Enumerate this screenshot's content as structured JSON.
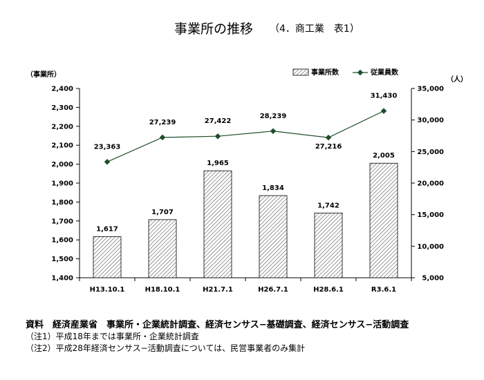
{
  "chart_data": {
    "type": "bar+line",
    "title": "事業所の推移",
    "subtitle": "（4．商工業　表1）",
    "categories": [
      "H13.10.1",
      "H18.10.1",
      "H21.7.1",
      "H26.7.1",
      "H28.6.1",
      "R3.6.1"
    ],
    "series": [
      {
        "name": "事業所数",
        "type": "bar",
        "axis": "left",
        "values": [
          1617,
          1707,
          1965,
          1834,
          1742,
          2005
        ],
        "labels": [
          "1,617",
          "1,707",
          "1,965",
          "1,834",
          "1,742",
          "2,005"
        ]
      },
      {
        "name": "従業員数",
        "type": "line",
        "axis": "right",
        "values": [
          23363,
          27239,
          27422,
          28239,
          27216,
          31430
        ],
        "labels": [
          "23,363",
          "27,239",
          "27,422",
          "28,239",
          "27,216",
          "31,430"
        ],
        "color": "#1f4d2a"
      }
    ],
    "left_axis": {
      "unit_label": "（事業所）",
      "range": [
        1400,
        2400
      ],
      "ticks": [
        1400,
        1500,
        1600,
        1700,
        1800,
        1900,
        2000,
        2100,
        2200,
        2300,
        2400
      ],
      "tick_labels": [
        "1,400",
        "1,500",
        "1,600",
        "1,700",
        "1,800",
        "1,900",
        "2,000",
        "2,100",
        "2,200",
        "2,300",
        "2,400"
      ]
    },
    "right_axis": {
      "unit_label": "（人）",
      "range": [
        5000,
        35000
      ],
      "ticks": [
        5000,
        10000,
        15000,
        20000,
        25000,
        30000,
        35000
      ],
      "tick_labels": [
        "5,000",
        "10,000",
        "15,000",
        "20,000",
        "25,000",
        "30,000",
        "35,000"
      ]
    },
    "legend": {
      "placement": "top-right",
      "items": [
        "事業所数",
        "従業員数"
      ]
    },
    "grid": false
  },
  "notes": {
    "source": "資料　経済産業省　事業所・企業統計調査、経済センサス−基礎調査、経済センサス−活動調査",
    "note1": "（注1）平成18年までは事業所・企業統計調査",
    "note2": "（注2）平成28年経済センサス−活動調査については、民営事業者のみ集計"
  }
}
